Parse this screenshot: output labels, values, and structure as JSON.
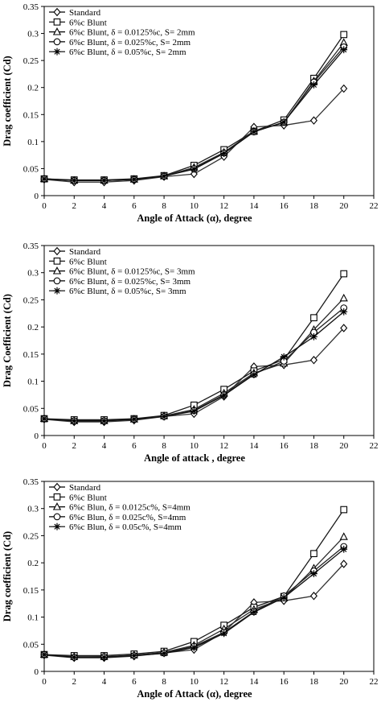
{
  "chart_data": [
    {
      "type": "line",
      "xlabel": "Angle of Attack (α), degree",
      "ylabel": "Drag coefficient (Cd)",
      "xlim": [
        0,
        22
      ],
      "ylim": [
        0,
        0.35
      ],
      "xticks": [
        "0",
        "2",
        "4",
        "6",
        "8",
        "10",
        "12",
        "14",
        "16",
        "18",
        "20",
        "22"
      ],
      "yticks": [
        "0",
        "0.05",
        "0.1",
        "0.15",
        "0.2",
        "0.25",
        "0.3",
        "0.35"
      ],
      "legend_position": "top-left",
      "grid": false,
      "x": [
        0,
        2,
        4,
        6,
        8,
        10,
        12,
        14,
        16,
        18,
        20
      ],
      "series": [
        {
          "name": "Standard",
          "marker": "diamond",
          "values": [
            0.03,
            0.025,
            0.025,
            0.028,
            0.035,
            0.04,
            0.072,
            0.127,
            0.13,
            0.139,
            0.198
          ]
        },
        {
          "name": "6%c Blunt",
          "marker": "square",
          "values": [
            0.031,
            0.029,
            0.029,
            0.031,
            0.037,
            0.056,
            0.085,
            0.119,
            0.14,
            0.217,
            0.298
          ]
        },
        {
          "name": "6%c Blunt, δ = 0.0125%c, S= 2mm",
          "marker": "triangle",
          "values": [
            0.031,
            0.028,
            0.028,
            0.03,
            0.036,
            0.052,
            0.08,
            0.119,
            0.135,
            0.212,
            0.283
          ]
        },
        {
          "name": "6%c Blunt, δ = 0.025%c, S= 2mm",
          "marker": "circle",
          "values": [
            0.031,
            0.028,
            0.028,
            0.03,
            0.036,
            0.05,
            0.079,
            0.118,
            0.136,
            0.21,
            0.275
          ]
        },
        {
          "name": "6%c Blunt, δ = 0.05%c, S= 2mm",
          "marker": "star",
          "values": [
            0.031,
            0.028,
            0.028,
            0.03,
            0.036,
            0.049,
            0.078,
            0.118,
            0.136,
            0.205,
            0.27
          ]
        }
      ]
    },
    {
      "type": "line",
      "xlabel": "Angle of attack , degree",
      "ylabel": "Drag Coefficient (Cd)",
      "xlim": [
        0,
        22
      ],
      "ylim": [
        0,
        0.35
      ],
      "xticks": [
        "0",
        "2",
        "4",
        "6",
        "8",
        "10",
        "12",
        "14",
        "16",
        "18",
        "20",
        "22"
      ],
      "yticks": [
        "0",
        "0.05",
        "0.1",
        "0.15",
        "0.2",
        "0.25",
        "0.3",
        "0.35"
      ],
      "legend_position": "top-left",
      "grid": false,
      "x": [
        0,
        2,
        4,
        6,
        8,
        10,
        12,
        14,
        16,
        18,
        20
      ],
      "series": [
        {
          "name": "Standard",
          "marker": "diamond",
          "values": [
            0.03,
            0.025,
            0.025,
            0.028,
            0.035,
            0.04,
            0.072,
            0.127,
            0.13,
            0.139,
            0.198
          ]
        },
        {
          "name": "6%c Blunt",
          "marker": "square",
          "values": [
            0.031,
            0.029,
            0.029,
            0.031,
            0.037,
            0.056,
            0.085,
            0.119,
            0.14,
            0.217,
            0.298
          ]
        },
        {
          "name": "6%c Blunt, δ = 0.0125%c, S= 3mm",
          "marker": "triangle",
          "values": [
            0.031,
            0.027,
            0.027,
            0.03,
            0.036,
            0.048,
            0.078,
            0.115,
            0.133,
            0.195,
            0.253
          ]
        },
        {
          "name": "6%c Blunt, δ = 0.025%c, S= 3mm",
          "marker": "circle",
          "values": [
            0.031,
            0.027,
            0.027,
            0.03,
            0.035,
            0.046,
            0.075,
            0.113,
            0.137,
            0.19,
            0.235
          ]
        },
        {
          "name": "6%c Blunt, δ = 0.05%c, S= 3mm",
          "marker": "star",
          "values": [
            0.031,
            0.027,
            0.027,
            0.03,
            0.035,
            0.045,
            0.074,
            0.112,
            0.145,
            0.182,
            0.228
          ]
        }
      ]
    },
    {
      "type": "line",
      "xlabel": "Angle of Attack (α), degree",
      "ylabel": "Drag coefficient (Cd)",
      "xlim": [
        0,
        22
      ],
      "ylim": [
        0,
        0.35
      ],
      "xticks": [
        "0",
        "2",
        "4",
        "6",
        "8",
        "10",
        "12",
        "14",
        "16",
        "18",
        "20",
        "22"
      ],
      "yticks": [
        "0",
        "0.05",
        "0.1",
        "0.15",
        "0.2",
        "0.25",
        "0.3",
        "0.35"
      ],
      "legend_position": "top-left",
      "grid": false,
      "x": [
        0,
        2,
        4,
        6,
        8,
        10,
        12,
        14,
        16,
        18,
        20
      ],
      "series": [
        {
          "name": "Standard",
          "marker": "diamond",
          "values": [
            0.03,
            0.025,
            0.025,
            0.028,
            0.034,
            0.04,
            0.072,
            0.127,
            0.13,
            0.139,
            0.198
          ]
        },
        {
          "name": "6%c Blunt",
          "marker": "square",
          "values": [
            0.031,
            0.029,
            0.029,
            0.032,
            0.037,
            0.055,
            0.085,
            0.118,
            0.138,
            0.217,
            0.298
          ]
        },
        {
          "name": "6%c Blun, δ = 0.0125c%, S=4mm",
          "marker": "triangle",
          "values": [
            0.031,
            0.027,
            0.027,
            0.03,
            0.035,
            0.048,
            0.078,
            0.114,
            0.135,
            0.19,
            0.248
          ]
        },
        {
          "name": "6%c Blun, δ = 0.025c%, S=4mm",
          "marker": "circle",
          "values": [
            0.031,
            0.026,
            0.027,
            0.029,
            0.034,
            0.046,
            0.072,
            0.11,
            0.139,
            0.185,
            0.23
          ]
        },
        {
          "name": "6%c Blun, δ = 0.05c%, S=4mm",
          "marker": "star",
          "values": [
            0.031,
            0.026,
            0.026,
            0.029,
            0.033,
            0.044,
            0.07,
            0.109,
            0.136,
            0.18,
            0.225
          ]
        }
      ]
    }
  ]
}
